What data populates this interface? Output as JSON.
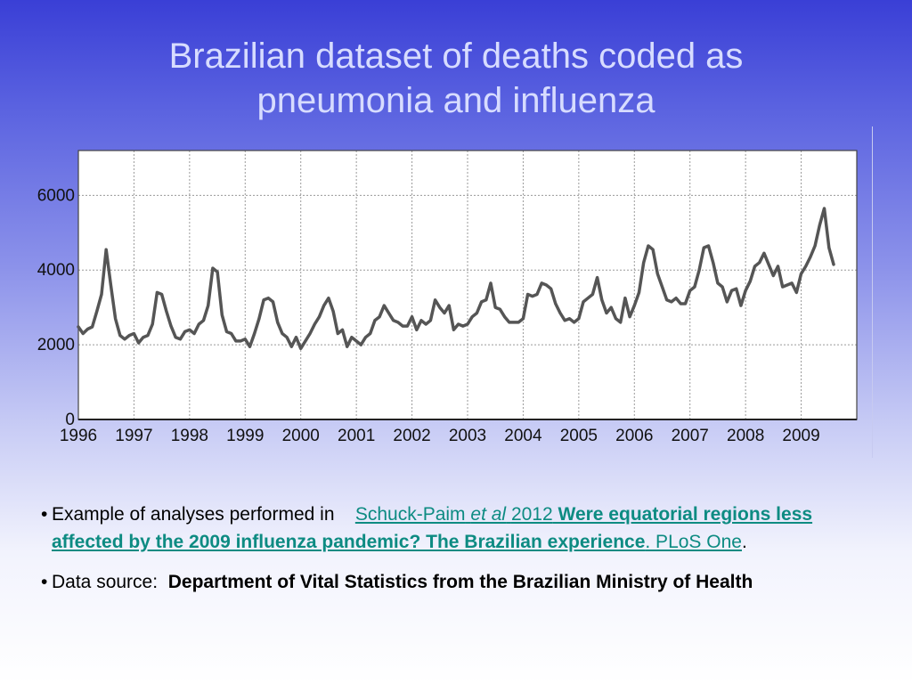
{
  "slide": {
    "title_line1": "Brazilian dataset of deaths coded as",
    "title_line2": "pneumonia and influenza",
    "bullet_glyph": "•",
    "bullet1": {
      "prefix": "Example of analyses performed in",
      "author": "Schuck-Paim",
      "etal": "et al",
      "year": "2012",
      "article_title": "Were equatorial regions less affected by the 2009 influenza pandemic? The Brazilian experience",
      "journal": ". PLoS One",
      "end": "."
    },
    "bullet2": {
      "prefix": "Data source:",
      "source": "Department of Vital Statistics from the Brazilian Ministry of Health"
    }
  },
  "colors": {
    "series": "#555555",
    "plot_bg": "#ffffff",
    "grid": "#9a9a9a",
    "link": "#0d8b82",
    "title": "#d7dcff"
  },
  "chart_data": {
    "type": "line",
    "title": "",
    "xlabel": "",
    "ylabel": "",
    "x_start": 1996,
    "x_end": 2010,
    "x_tick_labels": [
      "1996",
      "1997",
      "1998",
      "1999",
      "2000",
      "2001",
      "2002",
      "2003",
      "2004",
      "2005",
      "2006",
      "2007",
      "2008",
      "2009"
    ],
    "y_tick_labels": [
      "0",
      "2000",
      "4000",
      "6000"
    ],
    "y_ticks": [
      0,
      2000,
      4000,
      6000
    ],
    "ylim": [
      0,
      7200
    ],
    "grid": true,
    "series": [
      {
        "name": "",
        "start": 1996.0,
        "step": 0.08333,
        "values": [
          2480,
          2300,
          2420,
          2480,
          2900,
          3350,
          4550,
          3600,
          2700,
          2250,
          2150,
          2250,
          2300,
          2050,
          2200,
          2250,
          2550,
          3400,
          3350,
          2900,
          2500,
          2200,
          2150,
          2350,
          2400,
          2300,
          2550,
          2650,
          3050,
          4050,
          3950,
          2800,
          2350,
          2300,
          2100,
          2100,
          2150,
          1950,
          2300,
          2700,
          3200,
          3250,
          3150,
          2600,
          2300,
          2200,
          1950,
          2200,
          1900,
          2100,
          2300,
          2550,
          2750,
          3050,
          3250,
          2900,
          2300,
          2400,
          1950,
          2200,
          2100,
          2000,
          2200,
          2300,
          2650,
          2750,
          3050,
          2850,
          2650,
          2600,
          2500,
          2500,
          2750,
          2400,
          2650,
          2550,
          2650,
          3200,
          3000,
          2850,
          3050,
          2400,
          2550,
          2500,
          2550,
          2750,
          2850,
          3150,
          3200,
          3650,
          3000,
          2950,
          2750,
          2600,
          2600,
          2600,
          2700,
          3350,
          3300,
          3350,
          3650,
          3600,
          3500,
          3100,
          2850,
          2650,
          2700,
          2600,
          2700,
          3150,
          3250,
          3350,
          3800,
          3200,
          2850,
          3000,
          2700,
          2600,
          3250,
          2750,
          3050,
          3400,
          4200,
          4650,
          4550,
          3900,
          3550,
          3200,
          3150,
          3250,
          3100,
          3100,
          3450,
          3550,
          4000,
          4600,
          4650,
          4200,
          3650,
          3550,
          3150,
          3450,
          3500,
          3050,
          3450,
          3700,
          4100,
          4200,
          4450,
          4150,
          3850,
          4100,
          3550,
          3600,
          3650,
          3400,
          3900,
          4100,
          4350,
          4650,
          5200,
          5650,
          4600,
          4150
        ]
      }
    ]
  }
}
